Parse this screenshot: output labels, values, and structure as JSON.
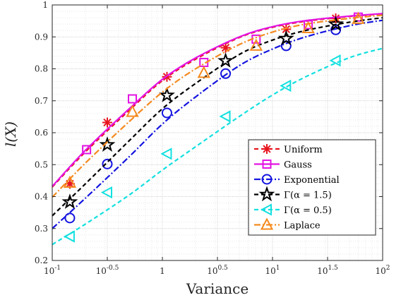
{
  "chart_data": {
    "type": "line",
    "xlabel": "Variance",
    "ylabel": "l(X)",
    "xscale": "log",
    "xlim": [
      0.1,
      100
    ],
    "ylim": [
      0.2,
      1
    ],
    "grid": true,
    "grid_minor": true,
    "legend_position": "lower-right",
    "x_ticks": [
      {
        "base": "10",
        "exp": "-1"
      },
      {
        "base": "10",
        "exp": "-0.5"
      },
      {
        "base": "1",
        "exp": ""
      },
      {
        "base": "10",
        "exp": "0.5"
      },
      {
        "base": "10",
        "exp": "1"
      },
      {
        "base": "10",
        "exp": "1.5"
      },
      {
        "base": "10",
        "exp": "2"
      }
    ],
    "y_ticks": [
      "0.2",
      "0.3",
      "0.4",
      "0.5",
      "0.6",
      "0.7",
      "0.8",
      "0.9",
      "1"
    ],
    "series": [
      {
        "name": "Uniform",
        "color": "#e8141e",
        "dash": "6,4",
        "marker": "asterisk",
        "curve": {
          "x": [
            0.1,
            0.2,
            0.5,
            1,
            2,
            5,
            10,
            20,
            50,
            100
          ],
          "y": [
            0.43,
            0.54,
            0.67,
            0.763,
            0.83,
            0.898,
            0.93,
            0.949,
            0.964,
            0.972
          ]
        },
        "points": {
          "x": [
            0.1445,
            0.3162,
            1.1,
            3.75,
            13.3,
            37.5
          ],
          "y": [
            0.44,
            0.632,
            0.775,
            0.866,
            0.924,
            0.958
          ]
        }
      },
      {
        "name": "Gauss",
        "color": "#e313e3",
        "dash": "",
        "marker": "square",
        "curve": {
          "x": [
            0.1,
            0.2,
            0.5,
            1,
            2,
            5,
            10,
            20,
            50,
            100
          ],
          "y": [
            0.432,
            0.545,
            0.675,
            0.767,
            0.834,
            0.9,
            0.932,
            0.951,
            0.965,
            0.973
          ]
        },
        "points": {
          "x": [
            0.205,
            0.534,
            2.38,
            7.1,
            21.1,
            60
          ],
          "y": [
            0.547,
            0.706,
            0.82,
            0.893,
            0.938,
            0.962
          ]
        }
      },
      {
        "name": "Exponential",
        "color": "#1414e0",
        "dash": "9,3,2,3",
        "marker": "circle",
        "curve": {
          "x": [
            0.1,
            0.2,
            0.5,
            1,
            2,
            5,
            10,
            20,
            50,
            100
          ],
          "y": [
            0.3,
            0.395,
            0.525,
            0.627,
            0.712,
            0.81,
            0.862,
            0.9,
            0.935,
            0.952
          ]
        },
        "points": {
          "x": [
            0.1445,
            0.3162,
            1.1,
            3.75,
            13.3,
            37.5
          ],
          "y": [
            0.333,
            0.502,
            0.662,
            0.785,
            0.872,
            0.922
          ]
        }
      },
      {
        "name": "Γ(α = 1.5)",
        "color": "#000000",
        "dash": "6,4",
        "marker": "star",
        "curve": {
          "x": [
            0.1,
            0.2,
            0.5,
            1,
            2,
            5,
            10,
            20,
            50,
            100
          ],
          "y": [
            0.34,
            0.44,
            0.575,
            0.675,
            0.754,
            0.845,
            0.89,
            0.92,
            0.946,
            0.96
          ]
        },
        "points": {
          "x": [
            0.1445,
            0.3162,
            1.1,
            3.75,
            13.3,
            37.5
          ],
          "y": [
            0.383,
            0.562,
            0.717,
            0.825,
            0.895,
            0.94
          ]
        }
      },
      {
        "name": "Γ(α = 0.5)",
        "color": "#14e0e0",
        "dash": "6,4",
        "marker": "triangle-left",
        "curve": {
          "x": [
            0.1,
            0.2,
            0.5,
            1,
            2,
            5,
            10,
            20,
            50,
            100
          ],
          "y": [
            0.25,
            0.314,
            0.405,
            0.483,
            0.556,
            0.651,
            0.718,
            0.775,
            0.835,
            0.864
          ]
        },
        "points": {
          "x": [
            0.1445,
            0.3162,
            1.1,
            3.75,
            13.3,
            37.5
          ],
          "y": [
            0.275,
            0.413,
            0.534,
            0.651,
            0.747,
            0.826
          ]
        }
      },
      {
        "name": "Laplace",
        "color": "#f58a1f",
        "dash": "9,3,2,3",
        "marker": "triangle-up",
        "curve": {
          "x": [
            0.1,
            0.2,
            0.5,
            1,
            2,
            5,
            10,
            20,
            50,
            100
          ],
          "y": [
            0.398,
            0.505,
            0.635,
            0.727,
            0.8,
            0.876,
            0.915,
            0.94,
            0.958,
            0.968
          ]
        },
        "points": {
          "x": [
            0.1445,
            0.534,
            2.38,
            7.1,
            21.1,
            60
          ],
          "y": [
            0.443,
            0.665,
            0.787,
            0.872,
            0.927,
            0.956
          ]
        }
      }
    ]
  }
}
